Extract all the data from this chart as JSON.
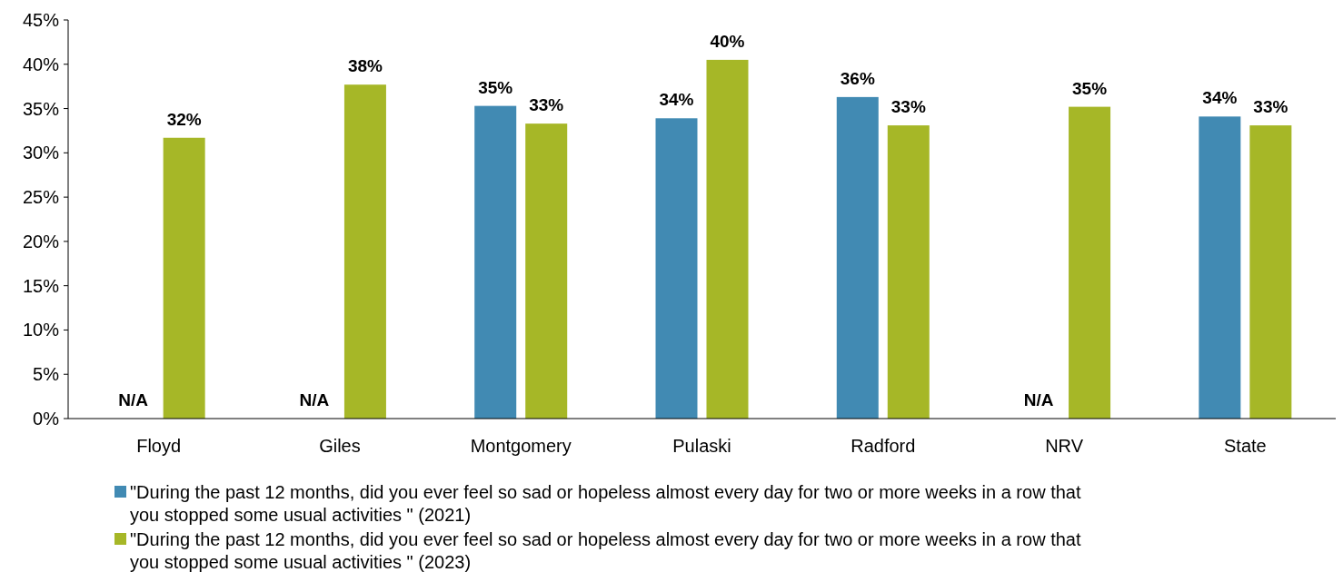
{
  "chart_data": {
    "type": "bar",
    "categories": [
      "Floyd",
      "Giles",
      "Montgomery",
      "Pulaski",
      "Radford",
      "NRV",
      "State"
    ],
    "series": [
      {
        "name": "\"During the past 12 months, did you ever feel so sad or hopeless almost every day for two or more weeks in a row that you stopped some usual activities \" (2021)",
        "color": "#418ab3",
        "values": [
          null,
          null,
          35.3,
          33.9,
          36.3,
          null,
          34.1
        ],
        "value_labels": [
          "N/A",
          "N/A",
          "35%",
          "34%",
          "36%",
          "N/A",
          "34%"
        ]
      },
      {
        "name": "\"During the past 12 months, did you ever feel so sad or hopeless almost every day for two or more weeks in a row that you stopped some usual activities \" (2023)",
        "color": "#a6b727",
        "values": [
          31.7,
          37.7,
          33.3,
          40.5,
          33.1,
          35.2,
          33.1
        ],
        "value_labels": [
          "32%",
          "38%",
          "33%",
          "40%",
          "33%",
          "35%",
          "33%"
        ]
      }
    ],
    "ylim": [
      0,
      45
    ],
    "yticks": [
      {
        "value": 0,
        "label": "0%"
      },
      {
        "value": 5,
        "label": "5%"
      },
      {
        "value": 10,
        "label": "10%"
      },
      {
        "value": 15,
        "label": "15%"
      },
      {
        "value": 20,
        "label": "20%"
      },
      {
        "value": 25,
        "label": "25%"
      },
      {
        "value": 30,
        "label": "30%"
      },
      {
        "value": 35,
        "label": "35%"
      },
      {
        "value": 40,
        "label": "40%"
      },
      {
        "value": 45,
        "label": "45%"
      }
    ],
    "grid": false,
    "legend": "bottom"
  }
}
